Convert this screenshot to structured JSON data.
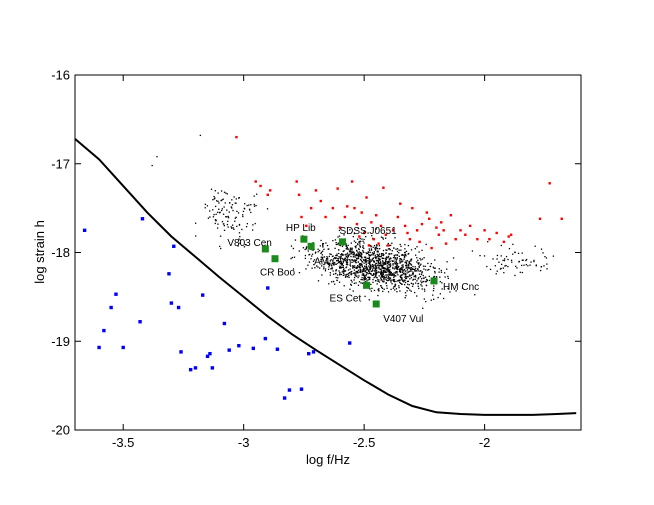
{
  "chart_data": {
    "type": "scatter",
    "xlabel": "log f/Hz",
    "ylabel": "log strain h",
    "xlim": [
      -3.7,
      -1.6
    ],
    "ylim": [
      -20,
      -16
    ],
    "x_ticks": [
      -3.5,
      -3,
      -2.5,
      -2
    ],
    "y_ticks": [
      -16,
      -17,
      -18,
      -19,
      -20
    ],
    "grid": false,
    "legend": "none",
    "colors": {
      "sensitivity_curve": "#000000",
      "labeled_sources": "#1a8a1a",
      "red_population": "#ff0000",
      "blue_population": "#0000ff",
      "black_population": "#000000"
    },
    "sensitivity_curve": {
      "x": [
        -3.7,
        -3.6,
        -3.5,
        -3.4,
        -3.3,
        -3.2,
        -3.1,
        -3.0,
        -2.9,
        -2.8,
        -2.7,
        -2.6,
        -2.5,
        -2.4,
        -2.3,
        -2.2,
        -2.1,
        -2.0,
        -1.9,
        -1.8,
        -1.7,
        -1.62
      ],
      "y": [
        -16.72,
        -16.95,
        -17.25,
        -17.55,
        -17.82,
        -18.05,
        -18.28,
        -18.5,
        -18.72,
        -18.92,
        -19.1,
        -19.27,
        -19.44,
        -19.6,
        -19.73,
        -19.8,
        -19.82,
        -19.83,
        -19.83,
        -19.83,
        -19.82,
        -19.81
      ]
    },
    "labeled_sources": [
      {
        "name": "V803 Cen",
        "x": -2.91,
        "y": -17.96
      },
      {
        "name": "CR Boo",
        "x": -2.87,
        "y": -18.07
      },
      {
        "name": "HP Lib",
        "x": -2.75,
        "y": -17.85
      },
      {
        "name": "AM CVn",
        "x": -2.72,
        "y": -17.93
      },
      {
        "name": "SDSS J0651",
        "x": -2.59,
        "y": -17.88
      },
      {
        "name": "ES Cet",
        "x": -2.49,
        "y": -18.37
      },
      {
        "name": "V407 Vul",
        "x": -2.45,
        "y": -18.58
      },
      {
        "name": "HM Cnc",
        "x": -2.21,
        "y": -18.32
      }
    ],
    "red_population": {
      "x": [
        -3.03,
        -2.95,
        -2.93,
        -2.9,
        -2.89,
        -2.78,
        -2.77,
        -2.76,
        -2.74,
        -2.72,
        -2.7,
        -2.68,
        -2.66,
        -2.63,
        -2.61,
        -2.6,
        -2.58,
        -2.57,
        -2.55,
        -2.54,
        -2.53,
        -2.52,
        -2.51,
        -2.5,
        -2.49,
        -2.48,
        -2.47,
        -2.46,
        -2.45,
        -2.44,
        -2.43,
        -2.42,
        -2.41,
        -2.4,
        -2.38,
        -2.36,
        -2.35,
        -2.33,
        -2.32,
        -2.31,
        -2.3,
        -2.28,
        -2.27,
        -2.26,
        -2.24,
        -2.23,
        -2.22,
        -2.2,
        -2.19,
        -2.18,
        -2.17,
        -2.16,
        -2.14,
        -2.12,
        -2.1,
        -2.08,
        -2.06,
        -2.03,
        -2.0,
        -1.98,
        -1.95,
        -1.92,
        -1.9,
        -1.89,
        -1.77,
        -1.73,
        -1.68
      ],
      "y": [
        -16.7,
        -17.2,
        -17.25,
        -17.35,
        -17.3,
        -17.2,
        -17.35,
        -17.6,
        -17.7,
        -17.5,
        -17.3,
        -17.42,
        -17.6,
        -17.5,
        -17.28,
        -17.72,
        -17.6,
        -17.48,
        -17.2,
        -17.5,
        -17.68,
        -17.82,
        -17.55,
        -17.78,
        -17.38,
        -17.92,
        -17.66,
        -17.85,
        -17.58,
        -17.9,
        -17.7,
        -17.27,
        -17.8,
        -17.92,
        -17.75,
        -17.6,
        -17.45,
        -17.7,
        -17.78,
        -17.85,
        -17.5,
        -17.75,
        -17.88,
        -17.68,
        -17.55,
        -17.62,
        -17.95,
        -17.72,
        -17.8,
        -17.66,
        -17.75,
        -17.9,
        -17.58,
        -17.85,
        -17.75,
        -17.8,
        -17.7,
        -17.85,
        -17.75,
        -17.85,
        -17.78,
        -17.88,
        -17.82,
        -17.8,
        -17.62,
        -17.22,
        -17.62
      ]
    },
    "blue_population": {
      "x": [
        -3.66,
        -3.6,
        -3.58,
        -3.55,
        -3.53,
        -3.5,
        -3.43,
        -3.42,
        -3.31,
        -3.3,
        -3.29,
        -3.27,
        -3.26,
        -3.22,
        -3.2,
        -3.17,
        -3.15,
        -3.14,
        -3.13,
        -3.08,
        -3.06,
        -3.02,
        -2.96,
        -2.91,
        -2.9,
        -2.86,
        -2.83,
        -2.81,
        -2.76,
        -2.73,
        -2.71,
        -2.56
      ],
      "y": [
        -17.75,
        -19.07,
        -18.88,
        -18.62,
        -18.47,
        -19.07,
        -18.78,
        -17.62,
        -18.24,
        -18.57,
        -17.93,
        -18.62,
        -19.12,
        -19.32,
        -19.3,
        -18.48,
        -19.17,
        -19.14,
        -19.3,
        -18.8,
        -19.1,
        -19.05,
        -19.08,
        -18.97,
        -18.4,
        -19.09,
        -19.64,
        -19.55,
        -19.54,
        -19.14,
        -19.12,
        -19.02
      ]
    }
  }
}
